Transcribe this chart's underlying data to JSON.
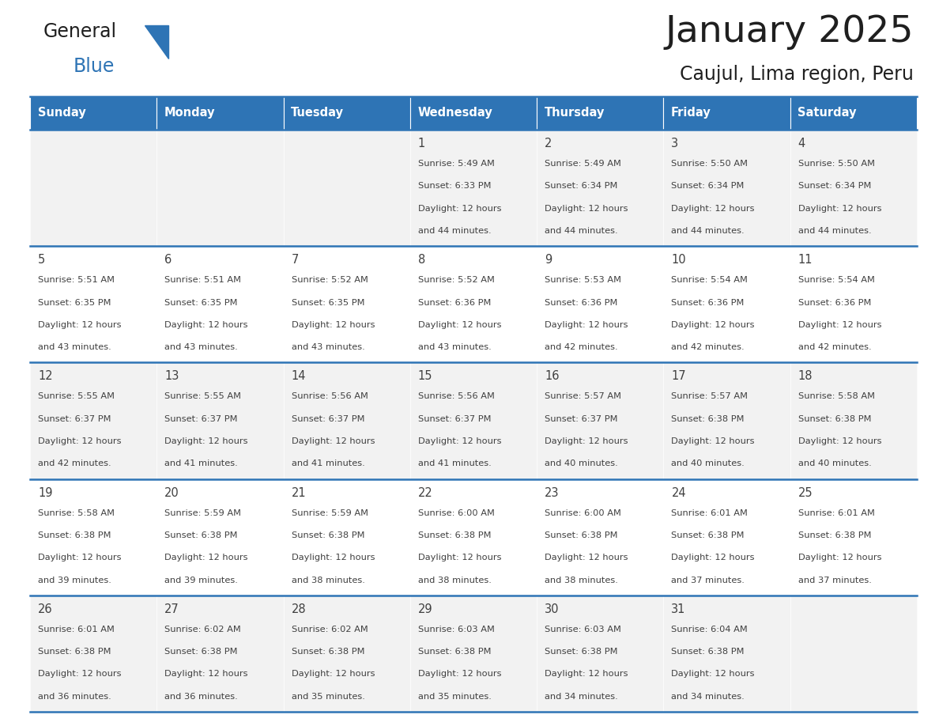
{
  "title": "January 2025",
  "subtitle": "Caujul, Lima region, Peru",
  "days_of_week": [
    "Sunday",
    "Monday",
    "Tuesday",
    "Wednesday",
    "Thursday",
    "Friday",
    "Saturday"
  ],
  "header_bg": "#2E74B5",
  "header_text": "#FFFFFF",
  "cell_bg_odd": "#F2F2F2",
  "cell_bg_even": "#FFFFFF",
  "divider_color": "#2E74B5",
  "text_color": "#404040",
  "title_color": "#1F1F1F",
  "calendar_data": [
    [
      null,
      null,
      null,
      {
        "day": 1,
        "sunrise": "5:49 AM",
        "sunset": "6:33 PM",
        "daylight": "12 hours",
        "daylight2": "and 44 minutes."
      },
      {
        "day": 2,
        "sunrise": "5:49 AM",
        "sunset": "6:34 PM",
        "daylight": "12 hours",
        "daylight2": "and 44 minutes."
      },
      {
        "day": 3,
        "sunrise": "5:50 AM",
        "sunset": "6:34 PM",
        "daylight": "12 hours",
        "daylight2": "and 44 minutes."
      },
      {
        "day": 4,
        "sunrise": "5:50 AM",
        "sunset": "6:34 PM",
        "daylight": "12 hours",
        "daylight2": "and 44 minutes."
      }
    ],
    [
      {
        "day": 5,
        "sunrise": "5:51 AM",
        "sunset": "6:35 PM",
        "daylight": "12 hours",
        "daylight2": "and 43 minutes."
      },
      {
        "day": 6,
        "sunrise": "5:51 AM",
        "sunset": "6:35 PM",
        "daylight": "12 hours",
        "daylight2": "and 43 minutes."
      },
      {
        "day": 7,
        "sunrise": "5:52 AM",
        "sunset": "6:35 PM",
        "daylight": "12 hours",
        "daylight2": "and 43 minutes."
      },
      {
        "day": 8,
        "sunrise": "5:52 AM",
        "sunset": "6:36 PM",
        "daylight": "12 hours",
        "daylight2": "and 43 minutes."
      },
      {
        "day": 9,
        "sunrise": "5:53 AM",
        "sunset": "6:36 PM",
        "daylight": "12 hours",
        "daylight2": "and 42 minutes."
      },
      {
        "day": 10,
        "sunrise": "5:54 AM",
        "sunset": "6:36 PM",
        "daylight": "12 hours",
        "daylight2": "and 42 minutes."
      },
      {
        "day": 11,
        "sunrise": "5:54 AM",
        "sunset": "6:36 PM",
        "daylight": "12 hours",
        "daylight2": "and 42 minutes."
      }
    ],
    [
      {
        "day": 12,
        "sunrise": "5:55 AM",
        "sunset": "6:37 PM",
        "daylight": "12 hours",
        "daylight2": "and 42 minutes."
      },
      {
        "day": 13,
        "sunrise": "5:55 AM",
        "sunset": "6:37 PM",
        "daylight": "12 hours",
        "daylight2": "and 41 minutes."
      },
      {
        "day": 14,
        "sunrise": "5:56 AM",
        "sunset": "6:37 PM",
        "daylight": "12 hours",
        "daylight2": "and 41 minutes."
      },
      {
        "day": 15,
        "sunrise": "5:56 AM",
        "sunset": "6:37 PM",
        "daylight": "12 hours",
        "daylight2": "and 41 minutes."
      },
      {
        "day": 16,
        "sunrise": "5:57 AM",
        "sunset": "6:37 PM",
        "daylight": "12 hours",
        "daylight2": "and 40 minutes."
      },
      {
        "day": 17,
        "sunrise": "5:57 AM",
        "sunset": "6:38 PM",
        "daylight": "12 hours",
        "daylight2": "and 40 minutes."
      },
      {
        "day": 18,
        "sunrise": "5:58 AM",
        "sunset": "6:38 PM",
        "daylight": "12 hours",
        "daylight2": "and 40 minutes."
      }
    ],
    [
      {
        "day": 19,
        "sunrise": "5:58 AM",
        "sunset": "6:38 PM",
        "daylight": "12 hours",
        "daylight2": "and 39 minutes."
      },
      {
        "day": 20,
        "sunrise": "5:59 AM",
        "sunset": "6:38 PM",
        "daylight": "12 hours",
        "daylight2": "and 39 minutes."
      },
      {
        "day": 21,
        "sunrise": "5:59 AM",
        "sunset": "6:38 PM",
        "daylight": "12 hours",
        "daylight2": "and 38 minutes."
      },
      {
        "day": 22,
        "sunrise": "6:00 AM",
        "sunset": "6:38 PM",
        "daylight": "12 hours",
        "daylight2": "and 38 minutes."
      },
      {
        "day": 23,
        "sunrise": "6:00 AM",
        "sunset": "6:38 PM",
        "daylight": "12 hours",
        "daylight2": "and 38 minutes."
      },
      {
        "day": 24,
        "sunrise": "6:01 AM",
        "sunset": "6:38 PM",
        "daylight": "12 hours",
        "daylight2": "and 37 minutes."
      },
      {
        "day": 25,
        "sunrise": "6:01 AM",
        "sunset": "6:38 PM",
        "daylight": "12 hours",
        "daylight2": "and 37 minutes."
      }
    ],
    [
      {
        "day": 26,
        "sunrise": "6:01 AM",
        "sunset": "6:38 PM",
        "daylight": "12 hours",
        "daylight2": "and 36 minutes."
      },
      {
        "day": 27,
        "sunrise": "6:02 AM",
        "sunset": "6:38 PM",
        "daylight": "12 hours",
        "daylight2": "and 36 minutes."
      },
      {
        "day": 28,
        "sunrise": "6:02 AM",
        "sunset": "6:38 PM",
        "daylight": "12 hours",
        "daylight2": "and 35 minutes."
      },
      {
        "day": 29,
        "sunrise": "6:03 AM",
        "sunset": "6:38 PM",
        "daylight": "12 hours",
        "daylight2": "and 35 minutes."
      },
      {
        "day": 30,
        "sunrise": "6:03 AM",
        "sunset": "6:38 PM",
        "daylight": "12 hours",
        "daylight2": "and 34 minutes."
      },
      {
        "day": 31,
        "sunrise": "6:04 AM",
        "sunset": "6:38 PM",
        "daylight": "12 hours",
        "daylight2": "and 34 minutes."
      },
      null
    ]
  ],
  "logo_text_general": "General",
  "logo_text_blue": "Blue",
  "logo_color_general": "#1F1F1F",
  "logo_color_blue": "#2E74B5",
  "logo_triangle_color": "#2E74B5",
  "fig_width": 11.88,
  "fig_height": 9.18
}
